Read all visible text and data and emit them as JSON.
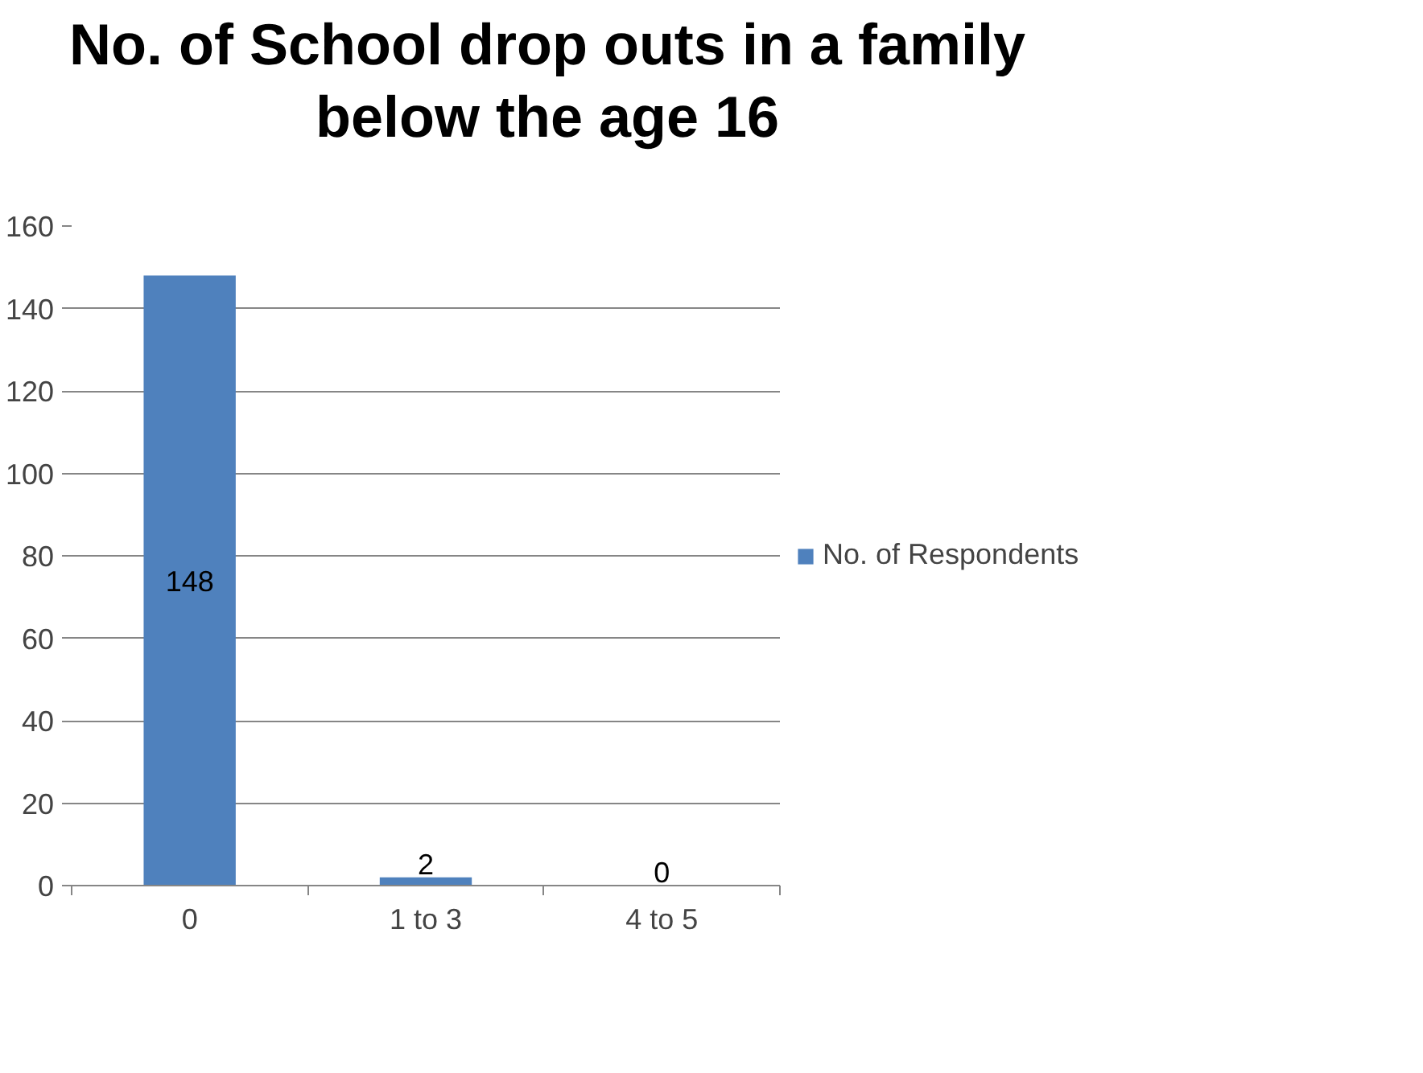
{
  "chart_data": {
    "type": "bar",
    "title": "No. of School drop outs in a family below the age 16",
    "categories": [
      "0",
      "1 to 3",
      "4 to 5"
    ],
    "series": [
      {
        "name": "No. of Respondents",
        "color": "#4f81bd",
        "values": [
          148,
          2,
          0
        ]
      }
    ],
    "ylim": [
      0,
      160
    ],
    "yticks": [
      0,
      20,
      40,
      60,
      80,
      100,
      120,
      140,
      160
    ],
    "grid": "y",
    "legend": "right",
    "data_labels": true
  }
}
